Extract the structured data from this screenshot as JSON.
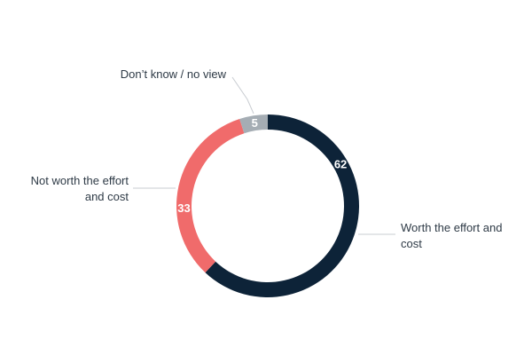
{
  "chart_data": {
    "type": "pie",
    "donut": true,
    "title": "",
    "categories": [
      "Worth the effort and cost",
      "Not worth the effort and cost",
      "Don't know / no view"
    ],
    "values": [
      62,
      33,
      5
    ],
    "colors": [
      "#0d2338",
      "#f06b6b",
      "#a5adb4"
    ],
    "label_lines": [
      [
        "Worth the effort and",
        "cost"
      ],
      [
        "Not worth the effort",
        "and cost"
      ],
      [
        "Don’t know / no view"
      ]
    ],
    "legend": "none"
  }
}
